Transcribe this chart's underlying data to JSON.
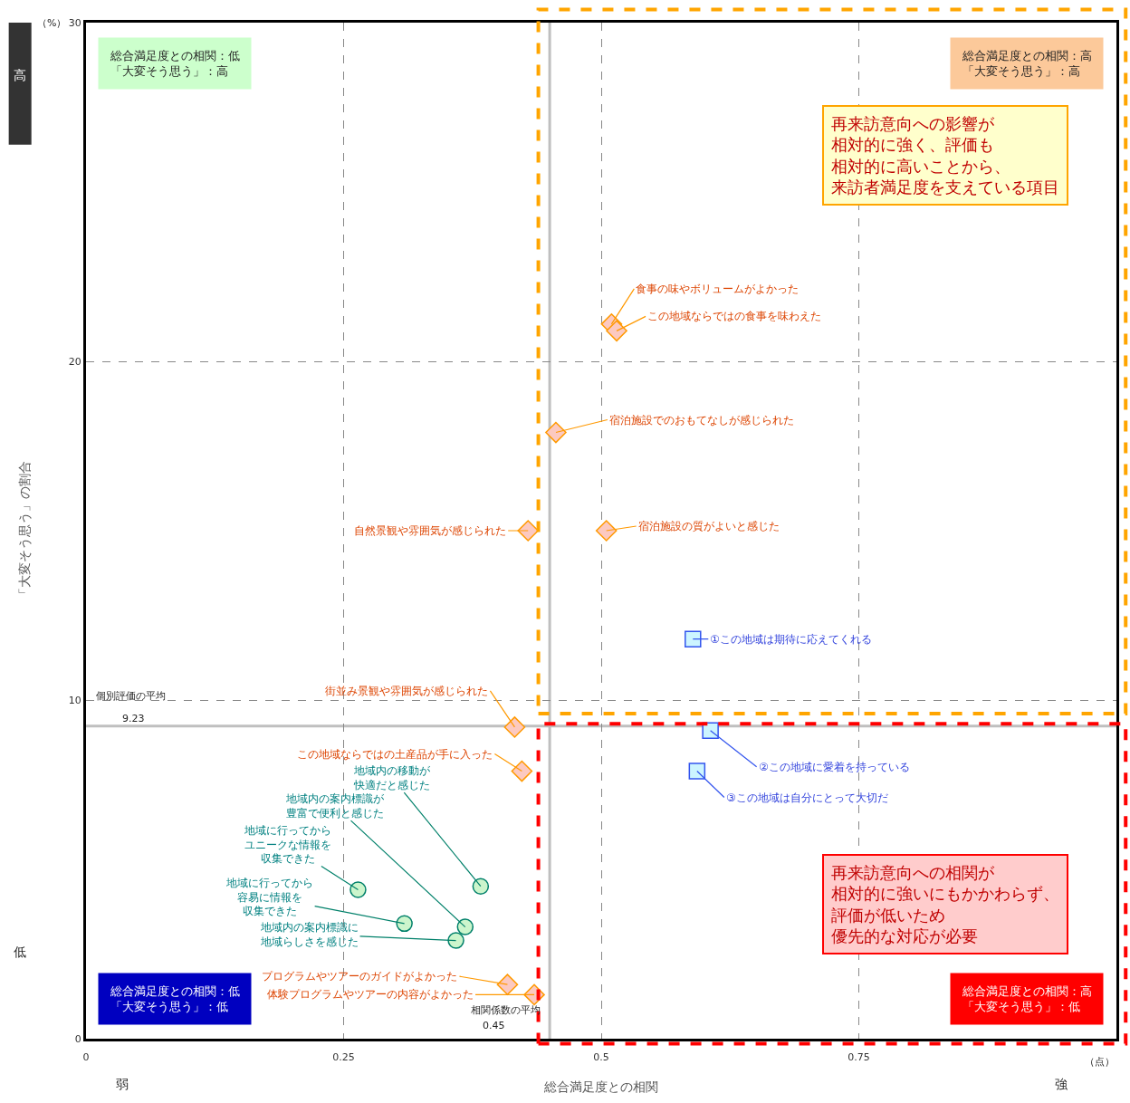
{
  "chart_data": {
    "type": "scatter",
    "xlabel": "総合満足度との相関",
    "ylabel": "「大変そう思う」の割合",
    "xlim": [
      0,
      1
    ],
    "ylim": [
      0,
      30
    ],
    "xticks": [
      0,
      0.25,
      0.5,
      0.75
    ],
    "yticks": [
      0,
      10,
      20,
      30
    ],
    "grid": true,
    "legend": false,
    "series": [
      {
        "marker": "diamond",
        "color": "#fcc9c0",
        "x": [
          0.51,
          0.515,
          0.456,
          0.429,
          0.505,
          0.416,
          0.423,
          0.409,
          0.435
        ],
        "values": [
          21.1,
          20.9,
          17.9,
          15.0,
          15.0,
          9.2,
          7.9,
          1.6,
          1.3
        ]
      },
      {
        "marker": "circle",
        "color": "#ccf5cc",
        "x": [
          0.383,
          0.368,
          0.264,
          0.309,
          0.359
        ],
        "values": [
          4.5,
          3.3,
          4.4,
          3.4,
          2.9
        ]
      },
      {
        "marker": "square",
        "color": "#ccf5ff",
        "x": [
          0.589,
          0.606,
          0.593
        ],
        "values": [
          11.8,
          9.1,
          7.9
        ]
      }
    ],
    "ref_lines": [
      {
        "axis": "y",
        "value": 9.23,
        "label": "個別評価の平均",
        "color": "#bfbfbf"
      },
      {
        "axis": "x",
        "value": 0.45,
        "label": "相関係数の平均",
        "color": "#bfbfbf"
      }
    ],
    "annotations": [
      "総合満足度との相関：低「大変そう思う」：高",
      "総合満足度との相関：高「大変そう思う」：高",
      "総合満足度との相関：低「大変そう思う」：低",
      "総合満足度との相関：高「大変そう思う」：低",
      "再来訪意向への影響が相対的に強く、評価も相対的に高いことから、来訪者満足度を支えている項目",
      "再来訪意向への相関が相対的に強いにもかかわらず、評価が低いため優先的な対応が必要",
      "高",
      "低",
      "弱",
      "強",
      "（%）",
      "（点）",
      "9.23",
      "0.45",
      {
        "text": "食事の味やボリュームがよかった",
        "x": 0.51,
        "y": 21.1
      },
      {
        "text": "この地域ならではの食事を味わえた",
        "x": 0.515,
        "y": 20.9
      },
      {
        "text": "宿泊施設でのおもてなしが感じられた",
        "x": 0.456,
        "y": 17.9
      },
      {
        "text": "自然景観や雰囲気が感じられた",
        "x": 0.429,
        "y": 15.0
      },
      {
        "text": "宿泊施設の質がよいと感じた",
        "x": 0.505,
        "y": 15.0
      },
      {
        "text": "街並み景観や雰囲気が感じられた",
        "x": 0.416,
        "y": 9.2
      },
      {
        "text": "この地域ならではの土産品が手に入った",
        "x": 0.423,
        "y": 7.9
      },
      {
        "text": "プログラムやツアーのガイドがよかった",
        "x": 0.409,
        "y": 1.6
      },
      {
        "text": "体験プログラムやツアーの内容がよかった",
        "x": 0.435,
        "y": 1.3
      },
      {
        "text": "地域内の移動が快適だと感じた",
        "x": 0.383,
        "y": 4.5
      },
      {
        "text": "地域内の案内標識が豊富で便利と感じた",
        "x": 0.368,
        "y": 3.3
      },
      {
        "text": "地域に行ってからユニークな情報を収集できた",
        "x": 0.264,
        "y": 4.4
      },
      {
        "text": "地域に行ってから容易に情報を収集できた",
        "x": 0.309,
        "y": 3.4
      },
      {
        "text": "地域内の案内標識に地域らしさを感じた",
        "x": 0.359,
        "y": 2.9
      },
      {
        "text": "①この地域は期待に応えてくれる",
        "x": 0.589,
        "y": 11.8
      },
      {
        "text": "②この地域に愛着を持っている",
        "x": 0.606,
        "y": 9.1
      },
      {
        "text": "③この地域は自分にとって大切だ",
        "x": 0.593,
        "y": 7.9
      }
    ]
  }
}
